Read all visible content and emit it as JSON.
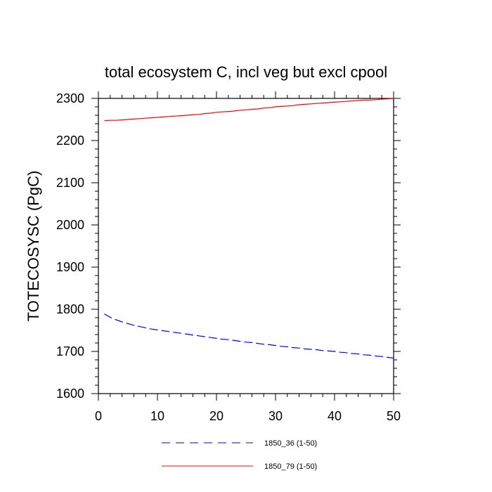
{
  "chart_data": {
    "type": "line",
    "title": "total ecosystem C, incl veg but excl cpool",
    "xlabel": "",
    "ylabel": "TOTECOSYSC  (PgC)",
    "xlim": [
      0,
      50
    ],
    "ylim": [
      1600,
      2300
    ],
    "xticks": [
      0,
      10,
      20,
      30,
      40,
      50
    ],
    "yticks": [
      1600,
      1700,
      1800,
      1900,
      2000,
      2100,
      2200,
      2300
    ],
    "grid": false,
    "legend_position": "bottom",
    "series": [
      {
        "name": "1850_36 (1-50)",
        "color": "#0000ff",
        "dash": "dashed",
        "x": [
          1,
          2,
          3,
          4,
          5,
          6,
          7,
          8,
          9,
          10,
          11,
          12,
          13,
          14,
          15,
          16,
          17,
          18,
          19,
          20,
          21,
          22,
          23,
          24,
          25,
          26,
          27,
          28,
          29,
          30,
          31,
          32,
          33,
          34,
          35,
          36,
          37,
          38,
          39,
          40,
          41,
          42,
          43,
          44,
          45,
          46,
          47,
          48,
          49,
          50
        ],
        "y": [
          1789,
          1781,
          1775,
          1770,
          1766,
          1762,
          1759,
          1756,
          1753,
          1751,
          1749,
          1747,
          1745,
          1743,
          1741,
          1739,
          1737,
          1735,
          1733,
          1731,
          1729,
          1728,
          1726,
          1724,
          1722,
          1721,
          1719,
          1717,
          1716,
          1714,
          1712,
          1711,
          1709,
          1708,
          1706,
          1705,
          1704,
          1702,
          1701,
          1700,
          1698,
          1697,
          1695,
          1694,
          1692,
          1691,
          1689,
          1688,
          1686,
          1684
        ]
      },
      {
        "name": "1850_79 (1-50)",
        "color": "#ff0000",
        "dash": "solid",
        "x": [
          1,
          2,
          3,
          4,
          5,
          6,
          7,
          8,
          9,
          10,
          11,
          12,
          13,
          14,
          15,
          16,
          17,
          18,
          19,
          20,
          21,
          22,
          23,
          24,
          25,
          26,
          27,
          28,
          29,
          30,
          31,
          32,
          33,
          34,
          35,
          36,
          37,
          38,
          39,
          40,
          41,
          42,
          43,
          44,
          45,
          46,
          47,
          48,
          49,
          50
        ],
        "y": [
          2247,
          2248,
          2248,
          2249,
          2250,
          2251,
          2252,
          2253,
          2254,
          2255,
          2256,
          2257,
          2258,
          2259,
          2260,
          2261,
          2262,
          2264,
          2265,
          2267,
          2268,
          2269,
          2270,
          2272,
          2273,
          2274,
          2275,
          2277,
          2278,
          2280,
          2281,
          2282,
          2283,
          2285,
          2286,
          2287,
          2288,
          2289,
          2290,
          2291,
          2292,
          2293,
          2294,
          2295,
          2296,
          2296,
          2297,
          2298,
          2299,
          2300
        ]
      }
    ]
  }
}
